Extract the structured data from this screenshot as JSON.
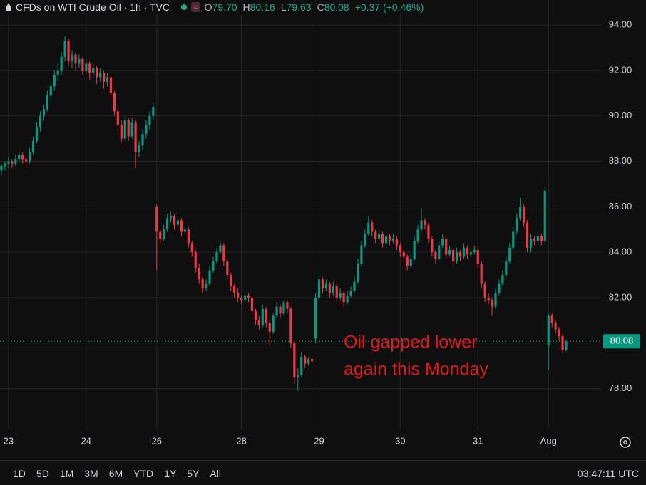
{
  "chart_data": {
    "type": "candlestick",
    "title": "CFDs on WTI Crude Oil · 1h · TVC",
    "ohlc": {
      "open_key": "O",
      "open": "79.70",
      "high_key": "H",
      "high": "80.16",
      "low_key": "L",
      "low": "79.63",
      "close_key": "C",
      "close": "80.08",
      "change": "+0.37 (+0.46%)"
    },
    "annotation": [
      "Oil gapped lower",
      "again this Monday"
    ],
    "up_color": "#089981",
    "down_color": "#f23645",
    "annotation_color": "#e0191b",
    "grid": true,
    "ylim": [
      76.2,
      95.1
    ],
    "yticks": [
      {
        "value": 78,
        "label": "78.00"
      },
      {
        "value": 80,
        "label": "80.00"
      },
      {
        "value": 82,
        "label": "82.00"
      },
      {
        "value": 84,
        "label": "84.00"
      },
      {
        "value": 86,
        "label": "86.00"
      },
      {
        "value": 88,
        "label": "88.00"
      },
      {
        "value": 90,
        "label": "90.00"
      },
      {
        "value": 92,
        "label": "92.00"
      },
      {
        "value": 94,
        "label": "94.00"
      }
    ],
    "categories": [
      null,
      null,
      "23",
      null,
      null,
      null,
      null,
      null,
      null,
      null,
      null,
      null,
      null,
      null,
      null,
      null,
      null,
      null,
      null,
      null,
      null,
      null,
      null,
      null,
      "24",
      null,
      null,
      null,
      null,
      null,
      null,
      null,
      null,
      null,
      null,
      null,
      null,
      null,
      null,
      null,
      null,
      null,
      null,
      null,
      "26",
      null,
      null,
      null,
      null,
      null,
      null,
      null,
      null,
      null,
      null,
      null,
      null,
      null,
      null,
      null,
      null,
      null,
      null,
      null,
      null,
      null,
      null,
      null,
      "28",
      null,
      null,
      null,
      null,
      null,
      null,
      null,
      null,
      null,
      null,
      null,
      null,
      null,
      null,
      null,
      null,
      null,
      null,
      null,
      null,
      null,
      "29",
      null,
      null,
      null,
      null,
      null,
      null,
      null,
      null,
      null,
      null,
      null,
      null,
      null,
      null,
      null,
      null,
      null,
      null,
      null,
      null,
      null,
      null,
      "30",
      null,
      null,
      null,
      null,
      null,
      null,
      null,
      null,
      null,
      null,
      null,
      null,
      null,
      null,
      null,
      null,
      null,
      null,
      null,
      null,
      null,
      "31",
      null,
      null,
      null,
      null,
      null,
      null,
      null,
      null,
      null,
      null,
      null,
      null,
      null,
      null,
      null,
      null,
      null,
      null,
      null,
      "Aug",
      null,
      null,
      null,
      null,
      null
    ],
    "candles": [
      [
        87.6,
        87.9,
        87.4,
        87.8
      ],
      [
        87.8,
        88.0,
        87.6,
        87.9
      ],
      [
        87.9,
        88.2,
        87.7,
        88.0
      ],
      [
        88.0,
        88.1,
        87.7,
        87.9
      ],
      [
        87.9,
        88.3,
        87.8,
        88.1
      ],
      [
        88.1,
        88.5,
        88.0,
        88.3
      ],
      [
        88.3,
        88.4,
        87.9,
        88.1
      ],
      [
        88.1,
        88.2,
        87.7,
        88.0
      ],
      [
        88.0,
        88.6,
        87.9,
        88.4
      ],
      [
        88.4,
        89.1,
        88.3,
        88.9
      ],
      [
        88.9,
        89.7,
        88.8,
        89.5
      ],
      [
        89.5,
        90.2,
        89.3,
        90.0
      ],
      [
        90.0,
        90.5,
        89.8,
        90.3
      ],
      [
        90.3,
        91.1,
        90.2,
        90.9
      ],
      [
        90.9,
        91.5,
        90.7,
        91.3
      ],
      [
        91.3,
        92.0,
        91.1,
        91.8
      ],
      [
        91.8,
        92.3,
        91.5,
        92.0
      ],
      [
        92.0,
        92.8,
        91.8,
        92.6
      ],
      [
        92.6,
        93.5,
        92.4,
        93.3
      ],
      [
        93.3,
        93.4,
        92.2,
        92.4
      ],
      [
        92.4,
        92.9,
        92.1,
        92.7
      ],
      [
        92.7,
        92.8,
        92.0,
        92.3
      ],
      [
        92.3,
        92.7,
        92.1,
        92.5
      ],
      [
        92.5,
        92.6,
        91.8,
        92.0
      ],
      [
        92.0,
        92.5,
        91.9,
        92.3
      ],
      [
        92.3,
        92.4,
        91.6,
        91.9
      ],
      [
        91.9,
        92.3,
        91.7,
        92.1
      ],
      [
        92.1,
        92.2,
        91.4,
        91.7
      ],
      [
        91.7,
        92.1,
        91.5,
        91.9
      ],
      [
        91.9,
        92.0,
        91.2,
        91.5
      ],
      [
        91.5,
        91.9,
        91.3,
        91.7
      ],
      [
        91.7,
        91.8,
        90.8,
        91.0
      ],
      [
        91.0,
        91.1,
        90.0,
        90.2
      ],
      [
        90.2,
        90.4,
        89.3,
        89.6
      ],
      [
        89.6,
        89.8,
        88.8,
        89.0
      ],
      [
        89.0,
        90.0,
        88.9,
        89.8
      ],
      [
        89.8,
        89.9,
        88.9,
        89.1
      ],
      [
        89.1,
        89.9,
        89.0,
        89.7
      ],
      [
        89.7,
        89.8,
        87.7,
        88.4
      ],
      [
        88.4,
        88.9,
        88.2,
        88.7
      ],
      [
        88.7,
        89.4,
        88.5,
        89.2
      ],
      [
        89.2,
        89.8,
        89.0,
        89.6
      ],
      [
        89.6,
        90.2,
        89.4,
        90.0
      ],
      [
        90.0,
        90.6,
        89.8,
        90.4
      ],
      [
        86.0,
        86.1,
        83.2,
        84.9
      ],
      [
        84.9,
        85.0,
        84.4,
        84.6
      ],
      [
        84.6,
        85.2,
        84.5,
        85.0
      ],
      [
        85.0,
        85.7,
        84.9,
        85.5
      ],
      [
        85.5,
        85.8,
        85.3,
        85.6
      ],
      [
        85.6,
        85.7,
        85.0,
        85.2
      ],
      [
        85.2,
        85.6,
        85.1,
        85.4
      ],
      [
        85.4,
        85.5,
        84.7,
        84.9
      ],
      [
        84.9,
        85.2,
        84.8,
        85.0
      ],
      [
        85.0,
        85.1,
        84.2,
        84.4
      ],
      [
        84.4,
        84.5,
        83.8,
        84.0
      ],
      [
        84.0,
        84.1,
        83.1,
        83.3
      ],
      [
        83.3,
        83.5,
        82.6,
        82.8
      ],
      [
        82.8,
        82.9,
        82.2,
        82.4
      ],
      [
        82.4,
        82.8,
        82.3,
        82.6
      ],
      [
        82.6,
        83.4,
        82.5,
        83.2
      ],
      [
        83.2,
        83.8,
        83.1,
        83.6
      ],
      [
        83.6,
        84.2,
        83.5,
        84.0
      ],
      [
        84.0,
        84.5,
        83.9,
        84.3
      ],
      [
        84.3,
        84.4,
        83.4,
        83.6
      ],
      [
        83.6,
        83.7,
        82.8,
        83.0
      ],
      [
        83.0,
        83.1,
        82.3,
        82.5
      ],
      [
        82.5,
        82.6,
        82.0,
        82.2
      ],
      [
        82.2,
        82.4,
        81.8,
        82.0
      ],
      [
        82.0,
        82.1,
        81.7,
        81.9
      ],
      [
        81.9,
        82.2,
        81.8,
        82.1
      ],
      [
        82.1,
        82.2,
        81.8,
        82.0
      ],
      [
        82.0,
        82.1,
        81.2,
        81.4
      ],
      [
        81.4,
        81.5,
        80.8,
        81.0
      ],
      [
        81.0,
        81.2,
        80.6,
        80.8
      ],
      [
        80.8,
        81.7,
        80.7,
        81.5
      ],
      [
        81.5,
        81.6,
        80.7,
        80.9
      ],
      [
        80.9,
        81.0,
        79.9,
        80.5
      ],
      [
        80.5,
        81.3,
        80.4,
        81.2
      ],
      [
        81.2,
        81.8,
        81.1,
        81.6
      ],
      [
        81.6,
        81.7,
        81.1,
        81.3
      ],
      [
        81.3,
        81.9,
        81.2,
        81.8
      ],
      [
        81.8,
        81.9,
        81.3,
        81.5
      ],
      [
        81.5,
        81.6,
        79.8,
        80.0
      ],
      [
        80.0,
        80.1,
        78.2,
        78.5
      ],
      [
        78.5,
        78.9,
        77.9,
        78.6
      ],
      [
        78.6,
        79.6,
        78.5,
        79.4
      ],
      [
        79.4,
        79.5,
        78.9,
        79.1
      ],
      [
        79.1,
        79.4,
        79.0,
        79.3
      ],
      [
        79.3,
        79.4,
        79.0,
        79.2
      ],
      [
        80.2,
        82.2,
        80.0,
        82.0
      ],
      [
        82.0,
        83.2,
        81.9,
        82.8
      ],
      [
        82.8,
        82.9,
        82.2,
        82.4
      ],
      [
        82.4,
        82.8,
        82.3,
        82.6
      ],
      [
        82.6,
        82.7,
        82.0,
        82.2
      ],
      [
        82.2,
        82.7,
        82.1,
        82.5
      ],
      [
        82.5,
        82.6,
        81.8,
        82.0
      ],
      [
        82.0,
        82.4,
        81.9,
        82.2
      ],
      [
        82.2,
        82.3,
        81.6,
        81.8
      ],
      [
        81.8,
        82.3,
        81.7,
        82.1
      ],
      [
        82.1,
        82.5,
        82.0,
        82.3
      ],
      [
        82.3,
        82.9,
        82.2,
        82.7
      ],
      [
        82.7,
        83.7,
        82.6,
        83.5
      ],
      [
        83.5,
        84.5,
        83.4,
        84.3
      ],
      [
        84.3,
        85.0,
        84.2,
        84.8
      ],
      [
        84.8,
        85.6,
        84.7,
        85.3
      ],
      [
        85.3,
        85.4,
        84.7,
        84.9
      ],
      [
        84.9,
        85.0,
        84.4,
        84.6
      ],
      [
        84.6,
        85.0,
        84.5,
        84.8
      ],
      [
        84.8,
        84.9,
        84.2,
        84.4
      ],
      [
        84.4,
        84.9,
        84.3,
        84.7
      ],
      [
        84.7,
        84.8,
        84.3,
        84.5
      ],
      [
        84.5,
        84.8,
        84.4,
        84.6
      ],
      [
        84.6,
        84.7,
        84.1,
        84.3
      ],
      [
        84.3,
        84.4,
        83.8,
        84.0
      ],
      [
        84.0,
        84.1,
        83.6,
        83.8
      ],
      [
        83.8,
        83.9,
        83.2,
        83.4
      ],
      [
        83.4,
        83.9,
        83.3,
        83.7
      ],
      [
        83.7,
        84.7,
        83.6,
        84.5
      ],
      [
        84.5,
        85.2,
        84.4,
        85.0
      ],
      [
        85.0,
        85.9,
        84.9,
        85.4
      ],
      [
        85.4,
        85.5,
        85.0,
        85.2
      ],
      [
        85.2,
        85.3,
        84.4,
        84.6
      ],
      [
        84.6,
        84.7,
        83.8,
        84.0
      ],
      [
        84.0,
        84.1,
        83.5,
        83.7
      ],
      [
        83.7,
        84.5,
        83.6,
        84.3
      ],
      [
        84.3,
        84.8,
        84.2,
        84.6
      ],
      [
        84.6,
        84.7,
        83.7,
        83.9
      ],
      [
        83.9,
        84.3,
        83.8,
        84.1
      ],
      [
        84.1,
        84.2,
        83.4,
        83.6
      ],
      [
        83.6,
        84.2,
        83.5,
        84.0
      ],
      [
        84.0,
        84.1,
        83.6,
        83.8
      ],
      [
        83.8,
        84.4,
        83.7,
        84.2
      ],
      [
        84.2,
        84.3,
        83.7,
        83.9
      ],
      [
        83.9,
        84.2,
        83.8,
        84.0
      ],
      [
        84.0,
        84.3,
        83.9,
        84.1
      ],
      [
        84.1,
        84.2,
        83.3,
        83.5
      ],
      [
        83.5,
        83.6,
        82.4,
        82.6
      ],
      [
        82.6,
        82.7,
        81.8,
        82.0
      ],
      [
        82.0,
        82.2,
        81.7,
        81.9
      ],
      [
        81.9,
        82.0,
        81.2,
        81.6
      ],
      [
        81.6,
        82.4,
        81.5,
        82.2
      ],
      [
        82.2,
        82.8,
        82.1,
        82.6
      ],
      [
        82.6,
        83.2,
        82.5,
        83.0
      ],
      [
        83.0,
        83.8,
        82.9,
        83.6
      ],
      [
        83.6,
        84.4,
        83.5,
        84.2
      ],
      [
        84.2,
        85.1,
        84.1,
        84.9
      ],
      [
        84.9,
        85.7,
        84.8,
        85.5
      ],
      [
        85.5,
        86.4,
        85.4,
        86.0
      ],
      [
        86.0,
        86.1,
        85.1,
        85.3
      ],
      [
        85.3,
        85.4,
        84.0,
        84.2
      ],
      [
        84.2,
        84.8,
        84.0,
        84.6
      ],
      [
        84.6,
        84.7,
        84.3,
        84.5
      ],
      [
        84.5,
        84.9,
        84.4,
        84.7
      ],
      [
        84.7,
        84.8,
        84.3,
        84.5
      ],
      [
        84.5,
        86.9,
        84.4,
        86.7
      ],
      [
        79.9,
        81.3,
        78.8,
        81.2
      ],
      [
        81.2,
        81.3,
        80.7,
        80.9
      ],
      [
        80.9,
        81.0,
        80.4,
        80.6
      ],
      [
        80.6,
        80.7,
        80.1,
        80.3
      ],
      [
        80.3,
        80.4,
        79.6,
        79.7
      ],
      [
        79.7,
        80.16,
        79.63,
        80.08
      ]
    ]
  },
  "toolbar": {
    "ranges": [
      "1D",
      "5D",
      "1M",
      "3M",
      "6M",
      "YTD",
      "1Y",
      "5Y",
      "All"
    ],
    "clock": "03:47:11 UTC"
  }
}
